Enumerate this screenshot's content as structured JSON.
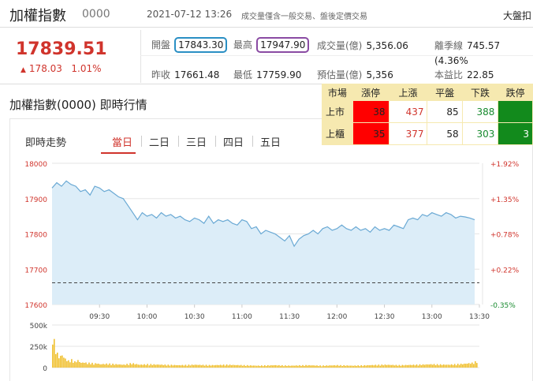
{
  "header": {
    "title": "加權指數",
    "code": "0000",
    "datetime": "2021-07-12 13:26",
    "note": "成交量僅含一般交易、盤後定價交易",
    "right_label": "大盤扣"
  },
  "quote": {
    "price": "17839.51",
    "change_arrow": "▲",
    "change": "178.03",
    "change_pct": "1.01%"
  },
  "stats": {
    "open_label": "開盤",
    "open": "17843.30",
    "high_label": "最高",
    "high": "17947.90",
    "volume_label": "成交量(億)",
    "volume": "5,356.06",
    "season_label": "離季線",
    "season": "745.57 (4.36%",
    "prev_label": "昨收",
    "prev": "17661.48",
    "low_label": "最低",
    "low": "17759.90",
    "est_label": "預估量(億)",
    "est": "5,356",
    "pe_label": "本益比",
    "pe": "22.85"
  },
  "section": {
    "title": "加權指數(0000) 即時行情",
    "chart_label": "即時走勢",
    "tabs": [
      "當日",
      "二日",
      "三日",
      "四日",
      "五日"
    ]
  },
  "market_table": {
    "headers": [
      "市場",
      "漲停",
      "上漲",
      "平盤",
      "下跌",
      "跌停"
    ],
    "rows": [
      {
        "market": "上市",
        "limit_up": "38",
        "up": "437",
        "flat": "85",
        "down": "388",
        "limit_down": ""
      },
      {
        "market": "上櫃",
        "limit_up": "35",
        "up": "377",
        "flat": "58",
        "down": "303",
        "limit_down": "3"
      }
    ]
  },
  "chart_data": [
    {
      "type": "line",
      "y_labels": [
        "18000",
        "17900",
        "17800",
        "17700",
        "17600"
      ],
      "y_right_labels": [
        "+1.92%",
        "+1.35%",
        "+0.78%",
        "+0.22%",
        "-0.35%"
      ],
      "x_labels": [
        "09:30",
        "10:00",
        "10:30",
        "11:00",
        "11:30",
        "12:00",
        "12:30",
        "13:00",
        "13:30"
      ],
      "ylim": [
        17600,
        18000
      ],
      "xlim": [
        0,
        270
      ],
      "prev_close": 17661.48,
      "series": [
        {
          "x": [
            0,
            3,
            6,
            9,
            12,
            15,
            18,
            21,
            24,
            27,
            30,
            33,
            36,
            39,
            42,
            45,
            48,
            51,
            54,
            57,
            60,
            63,
            66,
            69,
            72,
            75,
            78,
            81,
            84,
            87,
            90,
            93,
            96,
            99,
            102,
            105,
            108,
            111,
            114,
            117,
            120,
            123,
            126,
            129,
            132,
            135,
            138,
            141,
            144,
            147,
            150,
            153,
            156,
            159,
            162,
            165,
            168,
            171,
            174,
            177,
            180,
            183,
            186,
            189,
            192,
            195,
            198,
            201,
            204,
            207,
            210,
            213,
            216,
            219,
            222,
            225,
            228,
            231,
            234,
            237,
            240,
            243,
            246,
            249,
            252,
            255,
            258,
            261,
            264,
            267
          ],
          "y": [
            17930,
            17945,
            17935,
            17950,
            17940,
            17935,
            17920,
            17925,
            17910,
            17935,
            17930,
            17920,
            17925,
            17915,
            17905,
            17900,
            17880,
            17860,
            17840,
            17860,
            17850,
            17855,
            17845,
            17860,
            17850,
            17855,
            17845,
            17850,
            17840,
            17835,
            17845,
            17840,
            17830,
            17850,
            17830,
            17840,
            17835,
            17840,
            17830,
            17825,
            17840,
            17835,
            17815,
            17820,
            17800,
            17810,
            17805,
            17800,
            17790,
            17780,
            17795,
            17765,
            17785,
            17795,
            17800,
            17810,
            17800,
            17815,
            17820,
            17810,
            17815,
            17825,
            17815,
            17810,
            17820,
            17810,
            17815,
            17805,
            17820,
            17810,
            17815,
            17810,
            17825,
            17820,
            17815,
            17840,
            17845,
            17840,
            17855,
            17850,
            17860,
            17855,
            17850,
            17860,
            17855,
            17845,
            17850,
            17848,
            17845,
            17840
          ]
        }
      ]
    },
    {
      "type": "bar",
      "y_labels": [
        "500k",
        "250k",
        "0"
      ],
      "ylim": [
        0,
        500000
      ],
      "xlim": [
        0,
        270
      ],
      "series": [
        {
          "x": [
            0,
            2,
            4,
            6,
            8,
            10,
            12,
            14,
            16,
            18,
            20,
            22,
            24,
            26,
            28,
            30,
            35,
            40,
            45,
            50,
            55,
            60,
            70,
            80,
            90,
            100,
            110,
            120,
            130,
            140,
            150,
            160,
            170,
            180,
            190,
            200,
            210,
            220,
            230,
            240,
            250,
            260,
            266,
            268
          ],
          "values": [
            360000,
            180000,
            110000,
            130000,
            90000,
            70000,
            80000,
            60000,
            75000,
            50000,
            55000,
            45000,
            50000,
            40000,
            45000,
            35000,
            40000,
            35000,
            30000,
            45000,
            30000,
            35000,
            30000,
            25000,
            30000,
            25000,
            30000,
            25000,
            20000,
            25000,
            20000,
            25000,
            20000,
            25000,
            20000,
            25000,
            30000,
            25000,
            30000,
            35000,
            30000,
            40000,
            50000,
            70000
          ]
        }
      ]
    }
  ]
}
